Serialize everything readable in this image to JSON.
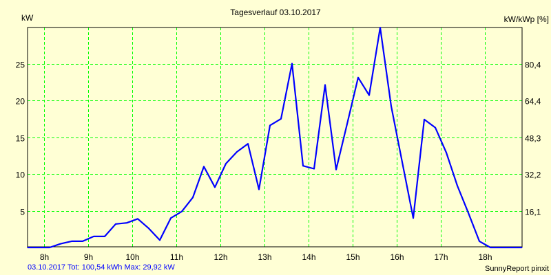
{
  "chart_data": {
    "type": "line",
    "title": "Tagesverlauf 03.10.2017",
    "ylabel": "kW",
    "ylabel_right": "kW/kWp [%]",
    "xlabel": "",
    "xlim": [
      7.625,
      18.84
    ],
    "ylim": [
      0,
      29.92
    ],
    "grid": true,
    "x_ticks": [
      {
        "value": 8,
        "label": "8h"
      },
      {
        "value": 9,
        "label": "9h"
      },
      {
        "value": 10,
        "label": "10h"
      },
      {
        "value": 11,
        "label": "11h"
      },
      {
        "value": 12,
        "label": "12h"
      },
      {
        "value": 13,
        "label": "13h"
      },
      {
        "value": 14,
        "label": "14h"
      },
      {
        "value": 15,
        "label": "15h"
      },
      {
        "value": 16,
        "label": "16h"
      },
      {
        "value": 17,
        "label": "17h"
      },
      {
        "value": 18,
        "label": "18h"
      }
    ],
    "y_ticks": [
      {
        "value": 5,
        "label": "5",
        "right": "16,1"
      },
      {
        "value": 10,
        "label": "10",
        "right": "32,2"
      },
      {
        "value": 15,
        "label": "15",
        "right": "48,3"
      },
      {
        "value": 20,
        "label": "20",
        "right": "64,4"
      },
      {
        "value": 25,
        "label": "25",
        "right": "80,4"
      }
    ],
    "series": [
      {
        "name": "kW",
        "color": "#0000ff",
        "x": [
          7.625,
          7.875,
          8.125,
          8.375,
          8.625,
          8.875,
          9.125,
          9.375,
          9.625,
          9.875,
          10.125,
          10.375,
          10.625,
          10.875,
          11.125,
          11.375,
          11.625,
          11.875,
          12.125,
          12.375,
          12.625,
          12.875,
          13.125,
          13.375,
          13.625,
          13.875,
          14.125,
          14.375,
          14.625,
          14.875,
          15.125,
          15.375,
          15.625,
          15.875,
          16.125,
          16.375,
          16.625,
          16.875,
          17.125,
          17.375,
          17.625,
          17.875,
          18.125,
          18.375,
          18.625,
          18.84
        ],
        "y": [
          0,
          0,
          0,
          0.5,
          0.85,
          0.85,
          1.5,
          1.5,
          3.2,
          3.35,
          3.9,
          2.6,
          1.0,
          4.0,
          4.9,
          6.8,
          11.0,
          8.2,
          11.4,
          13.0,
          14.1,
          7.9,
          16.6,
          17.5,
          25.0,
          11.1,
          10.7,
          22.1,
          10.6,
          16.8,
          23.1,
          20.7,
          29.9,
          19.2,
          11.6,
          4.0,
          17.4,
          16.3,
          12.9,
          8.4,
          4.7,
          0.85,
          0,
          0,
          0,
          0
        ]
      }
    ]
  },
  "footer": {
    "summary": "03.10.2017 Tot: 100,54 kWh Max: 29,92 kW",
    "credit": "SunnyReport pinxit"
  }
}
